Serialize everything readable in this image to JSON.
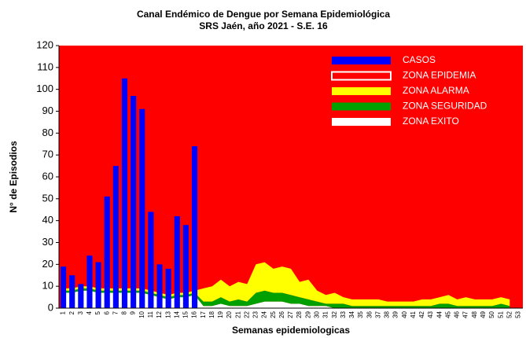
{
  "chart_data": {
    "type": "bar",
    "title": "Canal Endémico de Dengue por Semana Epidemiológica",
    "subtitle": "SRS Jaén, año 2021 - S.E. 16",
    "x_label": "Semanas epidemiologicas",
    "y_label": "N° de Episodios",
    "categories": [
      "1",
      "2",
      "3",
      "4",
      "5",
      "6",
      "7",
      "8",
      "9",
      "10",
      "11",
      "12",
      "13",
      "14",
      "15",
      "16",
      "17",
      "18",
      "19",
      "20",
      "21",
      "22",
      "23",
      "24",
      "25",
      "26",
      "27",
      "28",
      "29",
      "30",
      "31",
      "32",
      "33",
      "34",
      "35",
      "36",
      "37",
      "38",
      "39",
      "40",
      "41",
      "42",
      "43",
      "44",
      "45",
      "46",
      "47",
      "48",
      "49",
      "50",
      "51",
      "52",
      "53"
    ],
    "ylim": [
      0,
      120
    ],
    "yticks": [
      0,
      10,
      20,
      30,
      40,
      50,
      60,
      70,
      80,
      90,
      100,
      110,
      120
    ],
    "legend": "top-right",
    "series": [
      {
        "name": "CASOS",
        "type": "bar",
        "color": "#0000ff",
        "values": [
          19,
          15,
          11,
          24,
          21,
          51,
          65,
          105,
          97,
          91,
          44,
          20,
          18,
          42,
          38,
          74,
          null,
          null,
          null,
          null,
          null,
          null,
          null,
          null,
          null,
          null,
          null,
          null,
          null,
          null,
          null,
          null,
          null,
          null,
          null,
          null,
          null,
          null,
          null,
          null,
          null,
          null,
          null,
          null,
          null,
          null,
          null,
          null,
          null,
          null,
          null,
          null,
          null
        ]
      },
      {
        "name": "ZONA EPIDEMIA",
        "type": "area",
        "color": "#ff0000"
      },
      {
        "name": "ZONA ALARMA",
        "type": "area",
        "color": "#ffff00",
        "values": [
          1,
          1,
          1,
          1,
          1,
          1,
          1,
          1,
          1,
          1,
          1,
          1,
          1,
          1,
          1,
          1,
          6,
          7,
          8,
          7,
          8,
          8,
          13,
          13,
          11,
          12,
          12,
          7,
          9,
          5,
          4,
          5,
          3,
          3,
          3,
          3,
          3,
          2,
          2,
          2,
          2,
          3,
          3,
          3,
          4,
          3,
          4,
          3,
          3,
          3,
          3,
          3,
          null
        ]
      },
      {
        "name": "ZONA SEGURIDAD",
        "type": "area",
        "color": "#00a000",
        "values": [
          1,
          1,
          1,
          1,
          1,
          1,
          1,
          1,
          1,
          1,
          1,
          1,
          1,
          1,
          1,
          1,
          2,
          2,
          3,
          2,
          3,
          2,
          5,
          5,
          4,
          4,
          4,
          3,
          3,
          2,
          1,
          2,
          2,
          1,
          1,
          1,
          1,
          1,
          1,
          1,
          1,
          1,
          1,
          2,
          2,
          1,
          1,
          1,
          1,
          1,
          2,
          1,
          null
        ]
      },
      {
        "name": "ZONA EXITO",
        "type": "area",
        "color": "#ffffff",
        "values": [
          7,
          7,
          8,
          8,
          7,
          7,
          7,
          7,
          7,
          7,
          6,
          5,
          4,
          5,
          5,
          6,
          1,
          1,
          2,
          1,
          1,
          1,
          2,
          3,
          3,
          3,
          2,
          2,
          1,
          1,
          1,
          0,
          0,
          0,
          0,
          0,
          0,
          0,
          0,
          0,
          0,
          0,
          0,
          0,
          0,
          0,
          0,
          0,
          0,
          0,
          0,
          0,
          null
        ]
      }
    ]
  }
}
